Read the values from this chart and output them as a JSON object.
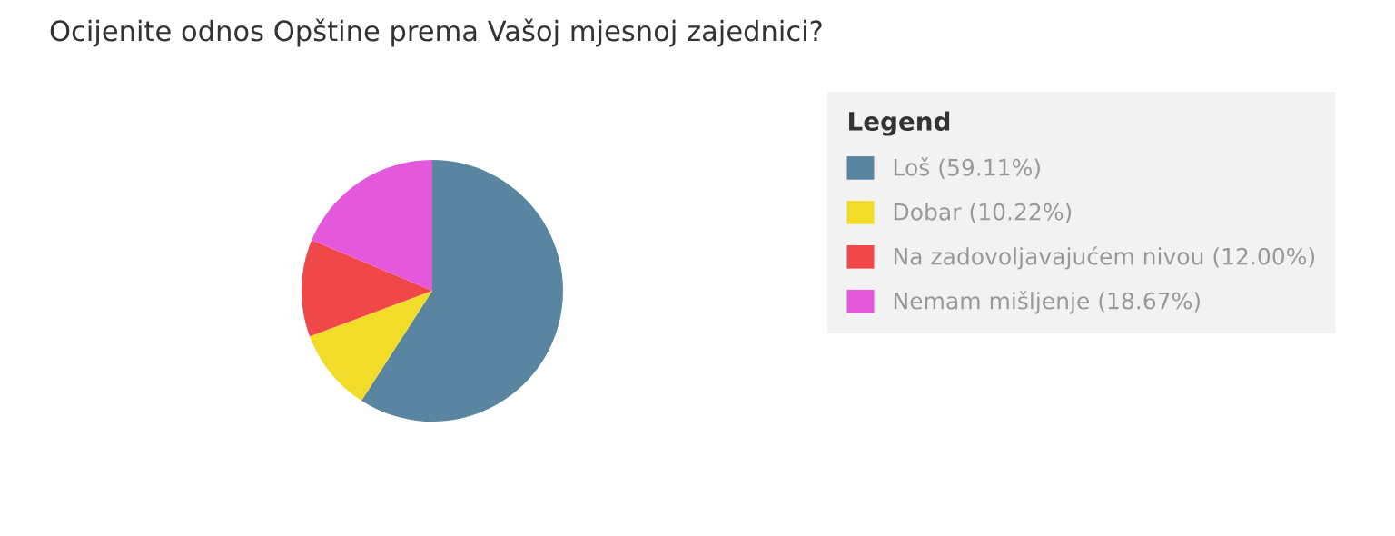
{
  "chart_data": {
    "type": "pie",
    "title": "Ocijenite odnos Opštine prema Vašoj mjesnoj zajednici?",
    "legend_title": "Legend",
    "legend": "right",
    "categories": [
      "Loš (59.11%)",
      "Dobar (10.22%)",
      "Na zadovoljavajućem nivou (12.00%)",
      "Nemam mišljenje (18.67%)"
    ],
    "values": [
      59.11,
      10.22,
      12.0,
      18.67
    ],
    "colors": [
      "#5a85a0",
      "#f2dc2a",
      "#f04848",
      "#e458dc"
    ]
  }
}
